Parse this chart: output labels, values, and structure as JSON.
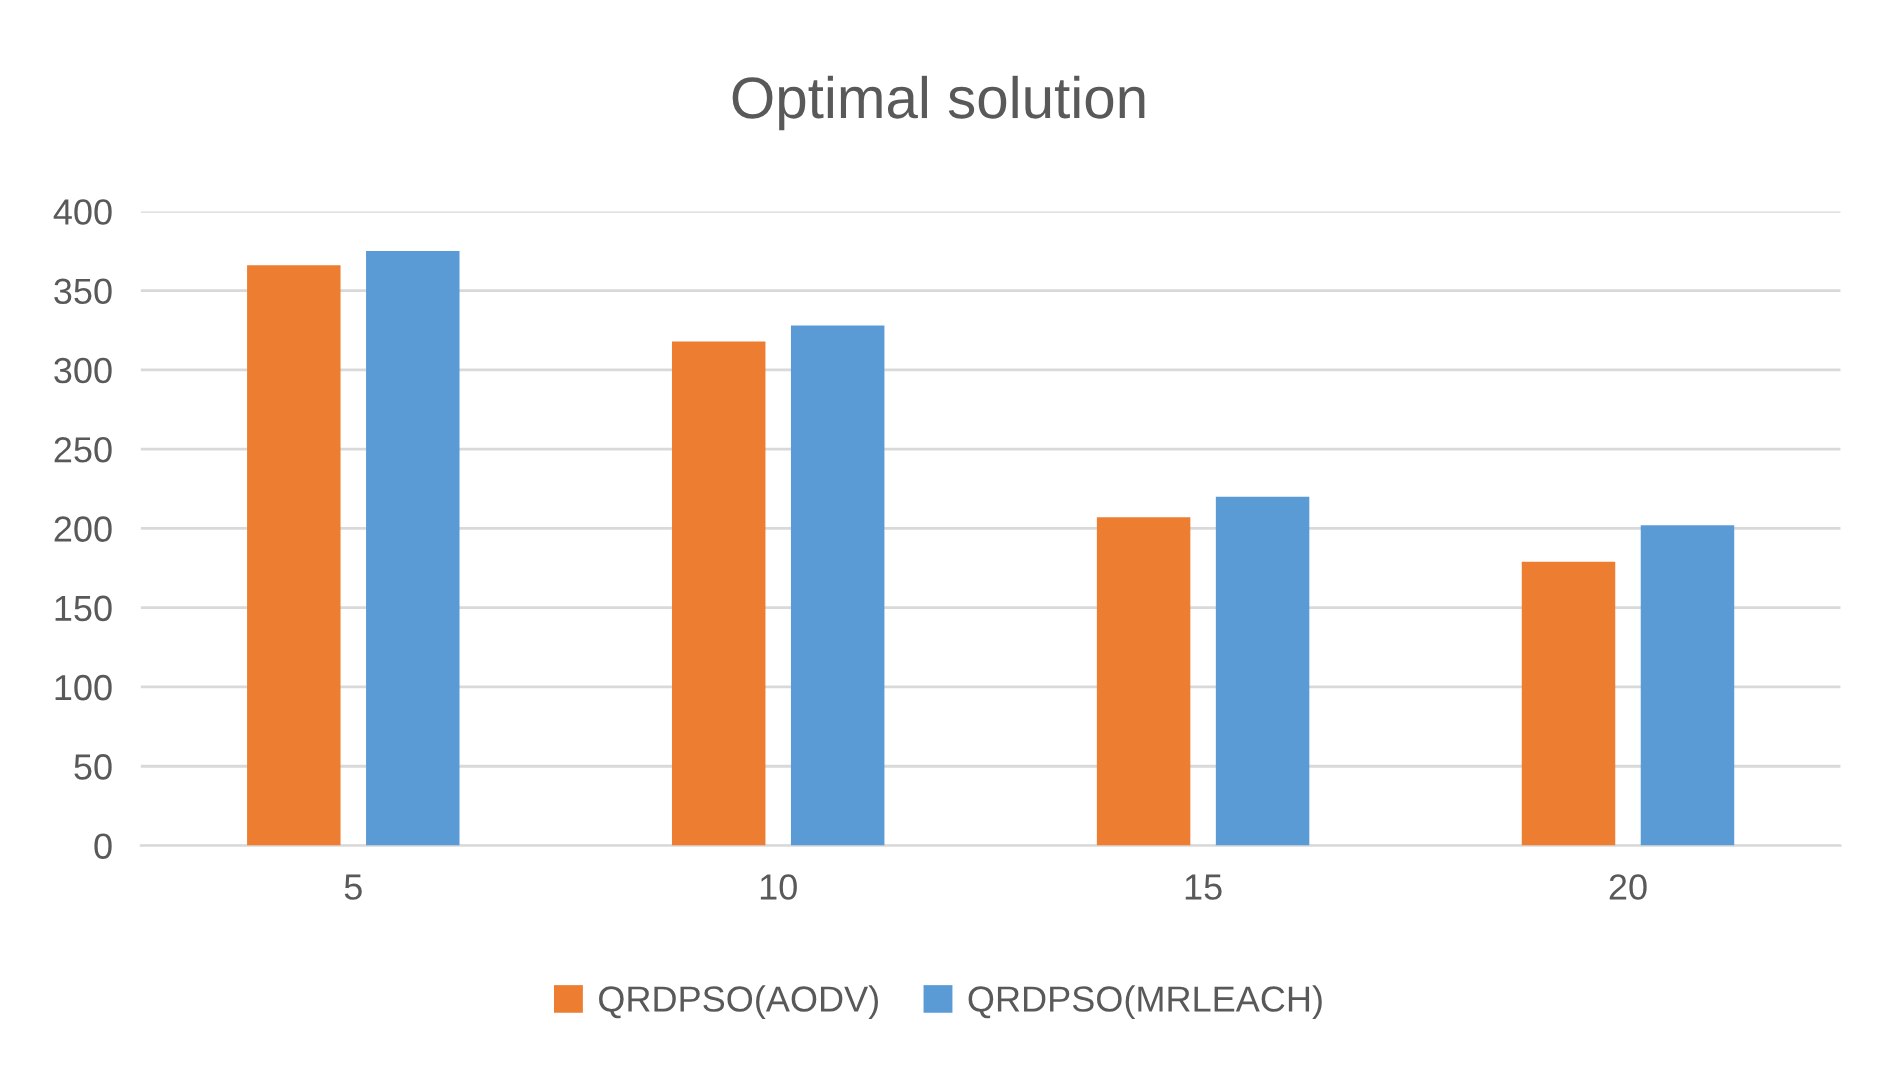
{
  "chart_data": {
    "type": "bar",
    "title": "Optimal solution",
    "categories": [
      "5",
      "10",
      "15",
      "20"
    ],
    "series": [
      {
        "name": "QRDPSO(AODV)",
        "color": "#ed7d31",
        "values": [
          366,
          318,
          207,
          179
        ]
      },
      {
        "name": "QRDPSO(MRLEACH)",
        "color": "#5b9bd5",
        "values": [
          375,
          328,
          220,
          202
        ]
      }
    ],
    "ylim": [
      0,
      400
    ],
    "yticks": [
      0,
      50,
      100,
      150,
      200,
      250,
      300,
      350,
      400
    ],
    "grid": "y",
    "legend": "bottom"
  }
}
